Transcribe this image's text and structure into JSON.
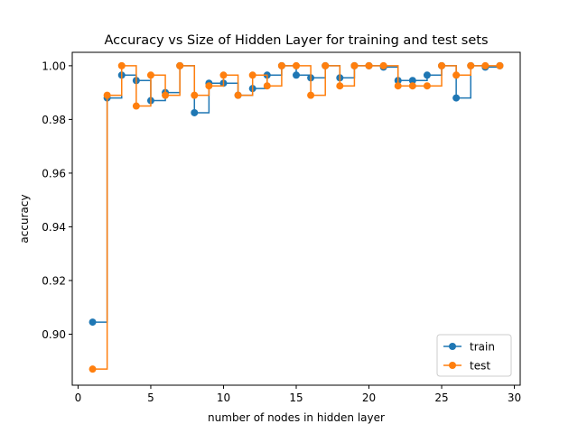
{
  "chart_data": {
    "type": "line",
    "drawstyle": "steps-post",
    "marker": "circle",
    "title": "Accuracy vs Size of Hidden Layer for training and test sets",
    "xlabel": "number of nodes in hidden layer",
    "ylabel": "accuracy",
    "xlim": [
      -0.4,
      30.4
    ],
    "ylim": [
      0.881,
      1.005
    ],
    "xticks": [
      0,
      5,
      10,
      15,
      20,
      25,
      30
    ],
    "xtick_labels": [
      "0",
      "5",
      "10",
      "15",
      "20",
      "25",
      "30"
    ],
    "yticks": [
      0.9,
      0.92,
      0.94,
      0.96,
      0.98,
      1.0
    ],
    "ytick_labels": [
      "0.90",
      "0.92",
      "0.94",
      "0.96",
      "0.98",
      "1.00"
    ],
    "grid": false,
    "legend_position": "lower right",
    "x": [
      1,
      2,
      3,
      4,
      5,
      6,
      7,
      8,
      9,
      10,
      11,
      12,
      13,
      14,
      15,
      16,
      17,
      18,
      19,
      20,
      21,
      22,
      23,
      24,
      25,
      26,
      27,
      28,
      29
    ],
    "series": [
      {
        "name": "train",
        "color": "#1f77b4",
        "values": [
          0.9045,
          0.988,
          0.9965,
          0.9945,
          0.987,
          0.99,
          1.0,
          0.9825,
          0.9935,
          0.9935,
          0.989,
          0.9915,
          0.9965,
          1.0,
          0.9965,
          0.9955,
          1.0,
          0.9955,
          1.0,
          1.0,
          0.9995,
          0.9945,
          0.9945,
          0.9965,
          1.0,
          0.988,
          1.0,
          0.9995,
          1.0
        ]
      },
      {
        "name": "test",
        "color": "#ff7f0e",
        "values": [
          0.887,
          0.989,
          1.0,
          0.985,
          0.9965,
          0.989,
          1.0,
          0.989,
          0.9925,
          0.9965,
          0.989,
          0.9965,
          0.9925,
          1.0,
          1.0,
          0.989,
          1.0,
          0.9925,
          1.0,
          1.0,
          1.0,
          0.9925,
          0.9925,
          0.9925,
          1.0,
          0.9965,
          1.0,
          1.0,
          1.0
        ]
      }
    ]
  }
}
